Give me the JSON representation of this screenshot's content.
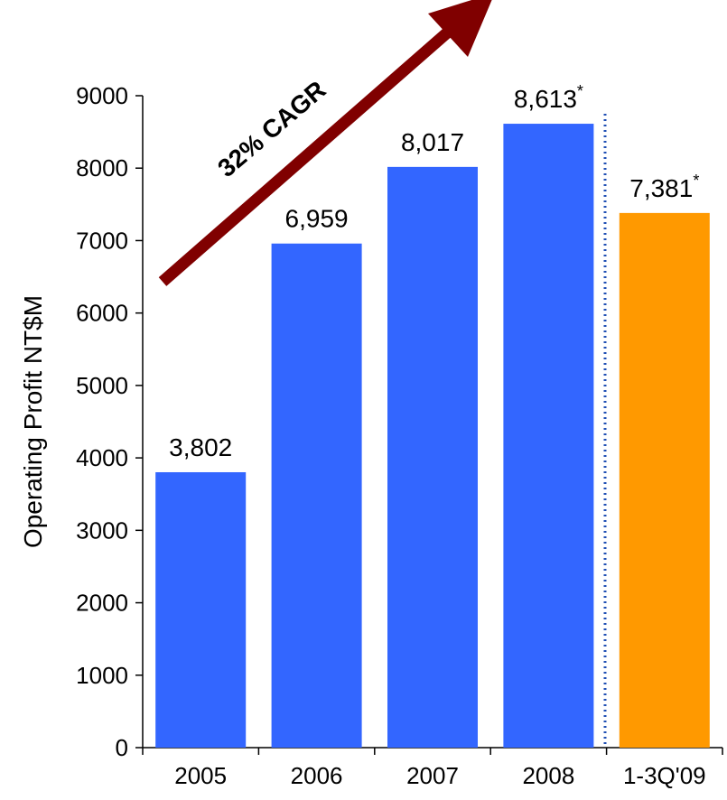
{
  "chart_data": {
    "type": "bar",
    "title": "",
    "xlabel": "",
    "ylabel": "Operating Profit NT$M",
    "ylim": [
      0,
      9000
    ],
    "yticks": [
      0,
      1000,
      2000,
      3000,
      4000,
      5000,
      6000,
      7000,
      8000,
      9000
    ],
    "categories": [
      "2005",
      "2006",
      "2007",
      "2008",
      "1-3Q'09"
    ],
    "values": [
      3802,
      6959,
      8017,
      8613,
      7381
    ],
    "value_labels": [
      "3,802",
      "6,959",
      "8,017",
      "8,613",
      "7,381"
    ],
    "footnote_markers": [
      "",
      "",
      "",
      "*",
      "*"
    ],
    "bar_colors": [
      "#3366ff",
      "#3366ff",
      "#3366ff",
      "#3366ff",
      "#ff9900"
    ],
    "separator": {
      "style": "dotted",
      "color": "#1f4fb4",
      "between": [
        "2008",
        "1-3Q'09"
      ]
    },
    "annotation": {
      "text": "32% CAGR",
      "arrow_color": "#800000"
    },
    "grid": false,
    "legend": "none"
  }
}
